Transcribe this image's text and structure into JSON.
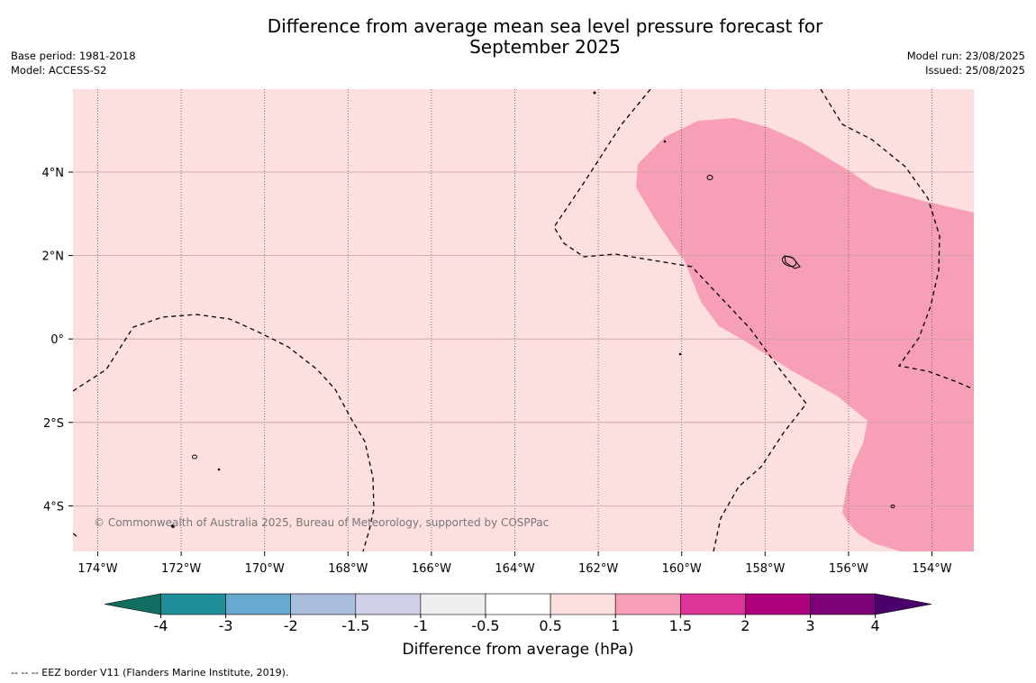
{
  "title_line1": "Difference from average mean sea level pressure forecast for",
  "title_line2": "September 2025",
  "meta_left": {
    "base_period": "Base period: 1981-2018",
    "model": "Model: ACCESS-S2"
  },
  "meta_right": {
    "model_run": "Model run: 23/08/2025",
    "issued": "Issued: 25/08/2025"
  },
  "copyright": "© Commonwealth of Australia 2025, Bureau of Meteorology, supported by COSPPac",
  "footnote": "-- -- -- EEZ border V11 (Flanders Marine Institute, 2019).",
  "map": {
    "lon_ticks": [
      "174°W",
      "172°W",
      "170°W",
      "168°W",
      "166°W",
      "164°W",
      "162°W",
      "160°W",
      "158°W",
      "156°W",
      "154°W"
    ],
    "lat_ticks": [
      "4°N",
      "2°N",
      "0°",
      "2°S",
      "4°S"
    ],
    "background_anomaly_class": "0.5 to 1",
    "background_color": "#fddfdf",
    "highlight_anomaly_class": "1 to 1.5",
    "highlight_color": "#f89fb8"
  },
  "colorbar": {
    "title": "Difference from average (hPa)",
    "tick_labels": [
      "-4",
      "-3",
      "-2",
      "-1.5",
      "-1",
      "-0.5",
      "0.5",
      "1",
      "1.5",
      "2",
      "3",
      "4"
    ],
    "colors": [
      "#0f6e5f",
      "#1f8f9a",
      "#67a9cf",
      "#a9bddd",
      "#d0d1e6",
      "#f1eef2",
      "#ffffff",
      "#fddfdf",
      "#f89fb8",
      "#dd3497",
      "#ae017e",
      "#7a0177",
      "#49006a"
    ]
  }
}
